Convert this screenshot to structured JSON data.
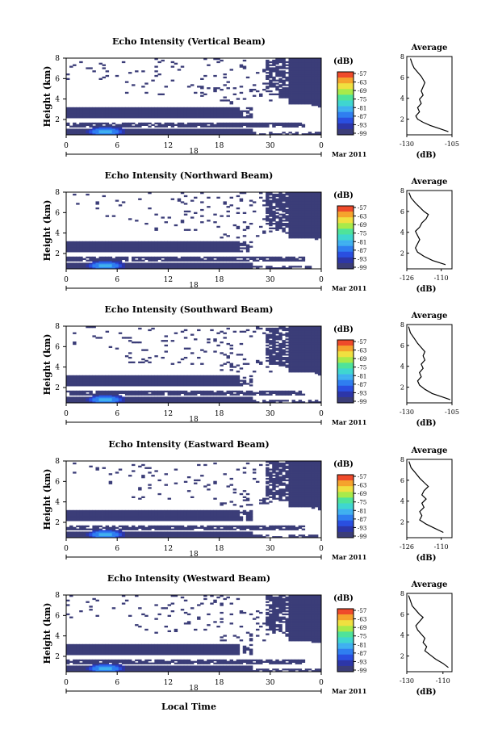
{
  "figure": {
    "shared_xlabel": "Local Time",
    "date_label": "Mar 2011",
    "day_label": "18",
    "height_ylabel": "Height (km)",
    "colorbar_unit": "(dB)",
    "colorbar_ticks": [
      "-57",
      "-63",
      "-69",
      "-75",
      "-81",
      "-87",
      "-93",
      "-99"
    ],
    "avg_title": "Average",
    "avg_xunit": "(dB)"
  },
  "chart_data": [
    {
      "type": "heatmap",
      "title": "Echo Intensity (Vertical Beam)",
      "xlabel": "Local Time",
      "ylabel": "Height (km)",
      "xlim": [
        0,
        24
      ],
      "ylim": [
        0.5,
        8
      ],
      "xticks": [
        "0",
        "6",
        "12",
        "18",
        "30",
        "0"
      ],
      "yticks": [
        "2",
        "4",
        "6",
        "8"
      ],
      "avg_profile": {
        "xlim": [
          -130,
          -105
        ],
        "xticks": [
          "-130",
          "-105"
        ],
        "yticks": [
          "2",
          "4",
          "6",
          "8"
        ],
        "points": [
          [
            -128,
            7.8
          ],
          [
            -127,
            7.3
          ],
          [
            -126,
            6.9
          ],
          [
            -124,
            6.5
          ],
          [
            -122,
            6.1
          ],
          [
            -121,
            5.8
          ],
          [
            -120,
            5.5
          ],
          [
            -121,
            5.1
          ],
          [
            -122,
            4.7
          ],
          [
            -121,
            4.3
          ],
          [
            -123,
            3.9
          ],
          [
            -122,
            3.5
          ],
          [
            -124,
            3.1
          ],
          [
            -123,
            2.7
          ],
          [
            -125,
            2.3
          ],
          [
            -124,
            2.0
          ],
          [
            -121,
            1.7
          ],
          [
            -117,
            1.4
          ],
          [
            -112,
            1.1
          ],
          [
            -107,
            0.8
          ]
        ]
      }
    },
    {
      "type": "heatmap",
      "title": "Echo Intensity (Northward Beam)",
      "xlabel": "Local Time",
      "ylabel": "Height (km)",
      "xlim": [
        0,
        24
      ],
      "ylim": [
        0.5,
        8
      ],
      "xticks": [
        "0",
        "6",
        "12",
        "18",
        "30",
        "0"
      ],
      "yticks": [
        "2",
        "4",
        "6",
        "8"
      ],
      "avg_profile": {
        "xlim": [
          -126,
          -105
        ],
        "xticks": [
          "-126",
          "-110"
        ],
        "yticks": [
          "2",
          "4",
          "6",
          "8"
        ],
        "points": [
          [
            -125,
            7.8
          ],
          [
            -124,
            7.3
          ],
          [
            -122,
            6.8
          ],
          [
            -120,
            6.4
          ],
          [
            -118,
            6.0
          ],
          [
            -116,
            5.7
          ],
          [
            -117,
            5.3
          ],
          [
            -119,
            4.9
          ],
          [
            -120,
            4.5
          ],
          [
            -122,
            4.1
          ],
          [
            -121,
            3.7
          ],
          [
            -120,
            3.3
          ],
          [
            -121,
            2.9
          ],
          [
            -122,
            2.5
          ],
          [
            -121,
            2.1
          ],
          [
            -118,
            1.7
          ],
          [
            -114,
            1.3
          ],
          [
            -108,
            0.9
          ]
        ]
      }
    },
    {
      "type": "heatmap",
      "title": "Echo Intensity (Southward Beam)",
      "xlabel": "Local Time",
      "ylabel": "Height (km)",
      "xlim": [
        0,
        24
      ],
      "ylim": [
        0.5,
        8
      ],
      "xticks": [
        "0",
        "6",
        "12",
        "18",
        "30",
        "0"
      ],
      "yticks": [
        "2",
        "4",
        "6",
        "8"
      ],
      "avg_profile": {
        "xlim": [
          -130,
          -105
        ],
        "xticks": [
          "-130",
          "-105"
        ],
        "yticks": [
          "2",
          "4",
          "6",
          "8"
        ],
        "points": [
          [
            -129,
            7.8
          ],
          [
            -128,
            7.2
          ],
          [
            -126,
            6.7
          ],
          [
            -124,
            6.2
          ],
          [
            -122,
            5.8
          ],
          [
            -120,
            5.4
          ],
          [
            -121,
            5.0
          ],
          [
            -120,
            4.6
          ],
          [
            -122,
            4.2
          ],
          [
            -121,
            3.8
          ],
          [
            -123,
            3.4
          ],
          [
            -122,
            3.0
          ],
          [
            -124,
            2.6
          ],
          [
            -123,
            2.2
          ],
          [
            -120,
            1.8
          ],
          [
            -116,
            1.4
          ],
          [
            -111,
            1.1
          ],
          [
            -106,
            0.8
          ]
        ]
      }
    },
    {
      "type": "heatmap",
      "title": "Echo Intensity (Eastward Beam)",
      "xlabel": "Local Time",
      "ylabel": "Height (km)",
      "xlim": [
        0,
        24
      ],
      "ylim": [
        0.5,
        8
      ],
      "xticks": [
        "0",
        "6",
        "12",
        "18",
        "30",
        "0"
      ],
      "yticks": [
        "2",
        "4",
        "6",
        "8"
      ],
      "avg_profile": {
        "xlim": [
          -126,
          -105
        ],
        "xticks": [
          "-126",
          "-110"
        ],
        "yticks": [
          "2",
          "4",
          "6",
          "8"
        ],
        "points": [
          [
            -125,
            7.8
          ],
          [
            -124,
            7.2
          ],
          [
            -122,
            6.7
          ],
          [
            -120,
            6.2
          ],
          [
            -118,
            5.8
          ],
          [
            -116,
            5.4
          ],
          [
            -118,
            5.0
          ],
          [
            -119,
            4.6
          ],
          [
            -117,
            4.2
          ],
          [
            -119,
            3.8
          ],
          [
            -118,
            3.4
          ],
          [
            -120,
            3.0
          ],
          [
            -119,
            2.6
          ],
          [
            -120,
            2.2
          ],
          [
            -117,
            1.8
          ],
          [
            -113,
            1.4
          ],
          [
            -109,
            1.0
          ]
        ]
      }
    },
    {
      "type": "heatmap",
      "title": "Echo Intensity (Westward Beam)",
      "xlabel": "Local Time",
      "ylabel": "Height (km)",
      "xlim": [
        0,
        24
      ],
      "ylim": [
        0.5,
        8
      ],
      "xticks": [
        "0",
        "6",
        "12",
        "18",
        "30",
        "0"
      ],
      "yticks": [
        "2",
        "4",
        "6",
        "8"
      ],
      "avg_profile": {
        "xlim": [
          -130,
          -105
        ],
        "xticks": [
          "-130",
          "-110"
        ],
        "yticks": [
          "2",
          "4",
          "6",
          "8"
        ],
        "points": [
          [
            -129,
            7.8
          ],
          [
            -128,
            7.3
          ],
          [
            -127,
            6.8
          ],
          [
            -125,
            6.4
          ],
          [
            -123,
            6.0
          ],
          [
            -121,
            5.7
          ],
          [
            -123,
            5.3
          ],
          [
            -125,
            4.9
          ],
          [
            -124,
            4.5
          ],
          [
            -122,
            4.1
          ],
          [
            -120,
            3.7
          ],
          [
            -121,
            3.3
          ],
          [
            -119,
            2.9
          ],
          [
            -120,
            2.5
          ],
          [
            -117,
            2.1
          ],
          [
            -114,
            1.7
          ],
          [
            -110,
            1.3
          ],
          [
            -107,
            0.9
          ]
        ]
      }
    }
  ]
}
